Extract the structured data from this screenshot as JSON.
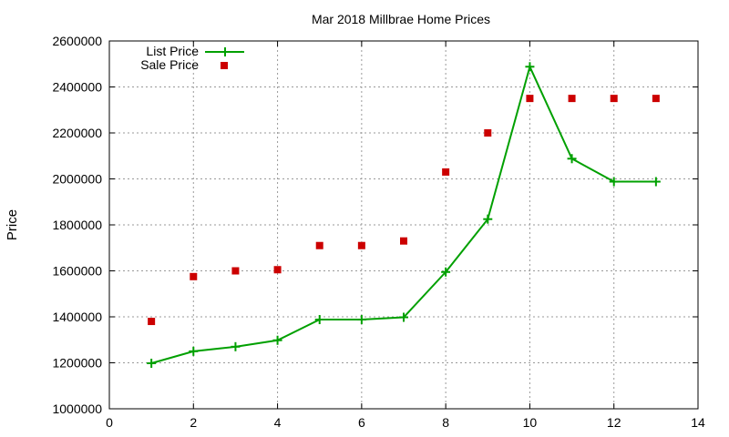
{
  "chart_data": {
    "type": "line",
    "title": "Mar 2018 Millbrae Home Prices",
    "xlabel": "",
    "ylabel": "Price",
    "xlim": [
      0,
      14
    ],
    "ylim": [
      1000000,
      2600000
    ],
    "xticks": [
      0,
      2,
      4,
      6,
      8,
      10,
      12,
      14
    ],
    "yticks": [
      1000000,
      1200000,
      1400000,
      1600000,
      1800000,
      2000000,
      2200000,
      2400000,
      2600000
    ],
    "grid": true,
    "legend_position": "top-left",
    "series": [
      {
        "name": "List Price",
        "style": "line+cross",
        "color": "#00a000",
        "x": [
          1,
          2,
          3,
          4,
          5,
          6,
          7,
          8,
          9,
          10,
          11,
          12,
          13
        ],
        "y": [
          1198000,
          1250000,
          1270000,
          1298000,
          1388000,
          1388000,
          1398000,
          1595000,
          1825000,
          2488000,
          2088000,
          1988000,
          1988000
        ]
      },
      {
        "name": "Sale Price",
        "style": "square",
        "color": "#cc0000",
        "x": [
          1,
          2,
          3,
          4,
          5,
          6,
          7,
          8,
          9,
          10,
          11,
          12,
          13
        ],
        "y": [
          1380000,
          1575000,
          1600000,
          1605000,
          1710000,
          1710000,
          1730000,
          2030000,
          2200000,
          2350000,
          2350000,
          2350000,
          2350000
        ]
      }
    ]
  }
}
